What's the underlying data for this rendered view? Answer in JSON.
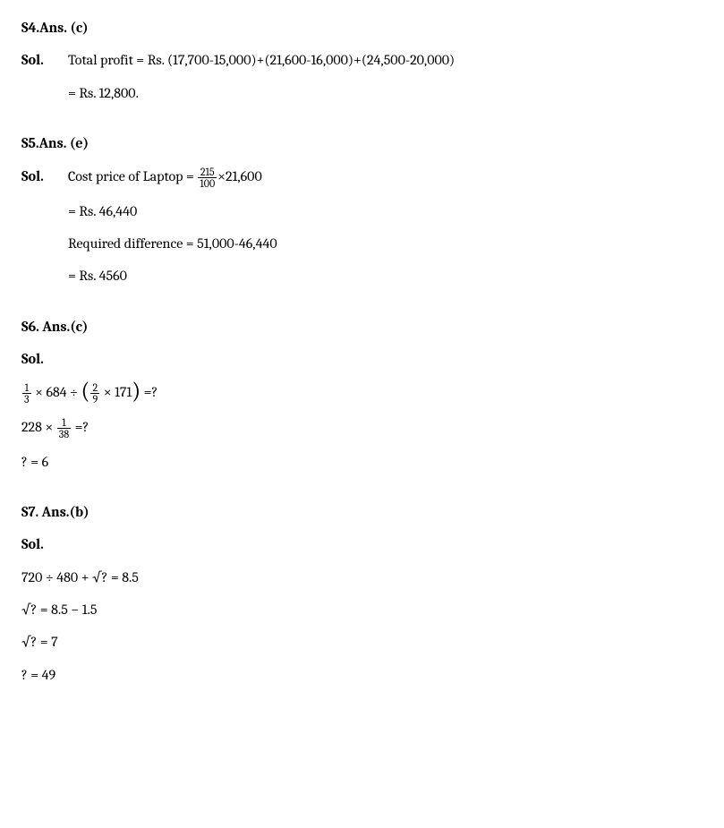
{
  "s4": {
    "heading": "S4.Ans. (c)",
    "sol_label": "Sol.",
    "line1": "Total profit = Rs. (17,700-15,000)+(21,600-16,000)+(24,500-20,000)",
    "line2": "= Rs. 12,800."
  },
  "s5": {
    "heading": "S5.Ans. (e)",
    "sol_label": "Sol.",
    "line1_pre": "Cost price of Laptop = ",
    "frac_num": "215",
    "frac_den": "100",
    "line1_post": "×21,600",
    "line2": "= Rs. 46,440",
    "line3": "Required difference = 51,000-46,440",
    "line4": "= Rs. 4560"
  },
  "s6": {
    "heading": "S6. Ans.(c)",
    "sol_label": "Sol.",
    "f1_num": "1",
    "f1_den": "3",
    "m1_a": " × 684 ÷ ",
    "f2_num": "2",
    "f2_den": "9",
    "m1_b": " × 171",
    "m1_c": " =?",
    "m2_a": "228 × ",
    "f3_num": "1",
    "f3_den": "38",
    "m2_b": " =?",
    "m3": "? = 6"
  },
  "s7": {
    "heading": "S7. Ans.(b)",
    "sol_label": "Sol.",
    "m1": " 720 ÷ 480 + √?  = 8.5",
    "m2": "√?  = 8.5 − 1.5",
    "m3": "√?  = 7",
    "m4": "? = 49"
  }
}
